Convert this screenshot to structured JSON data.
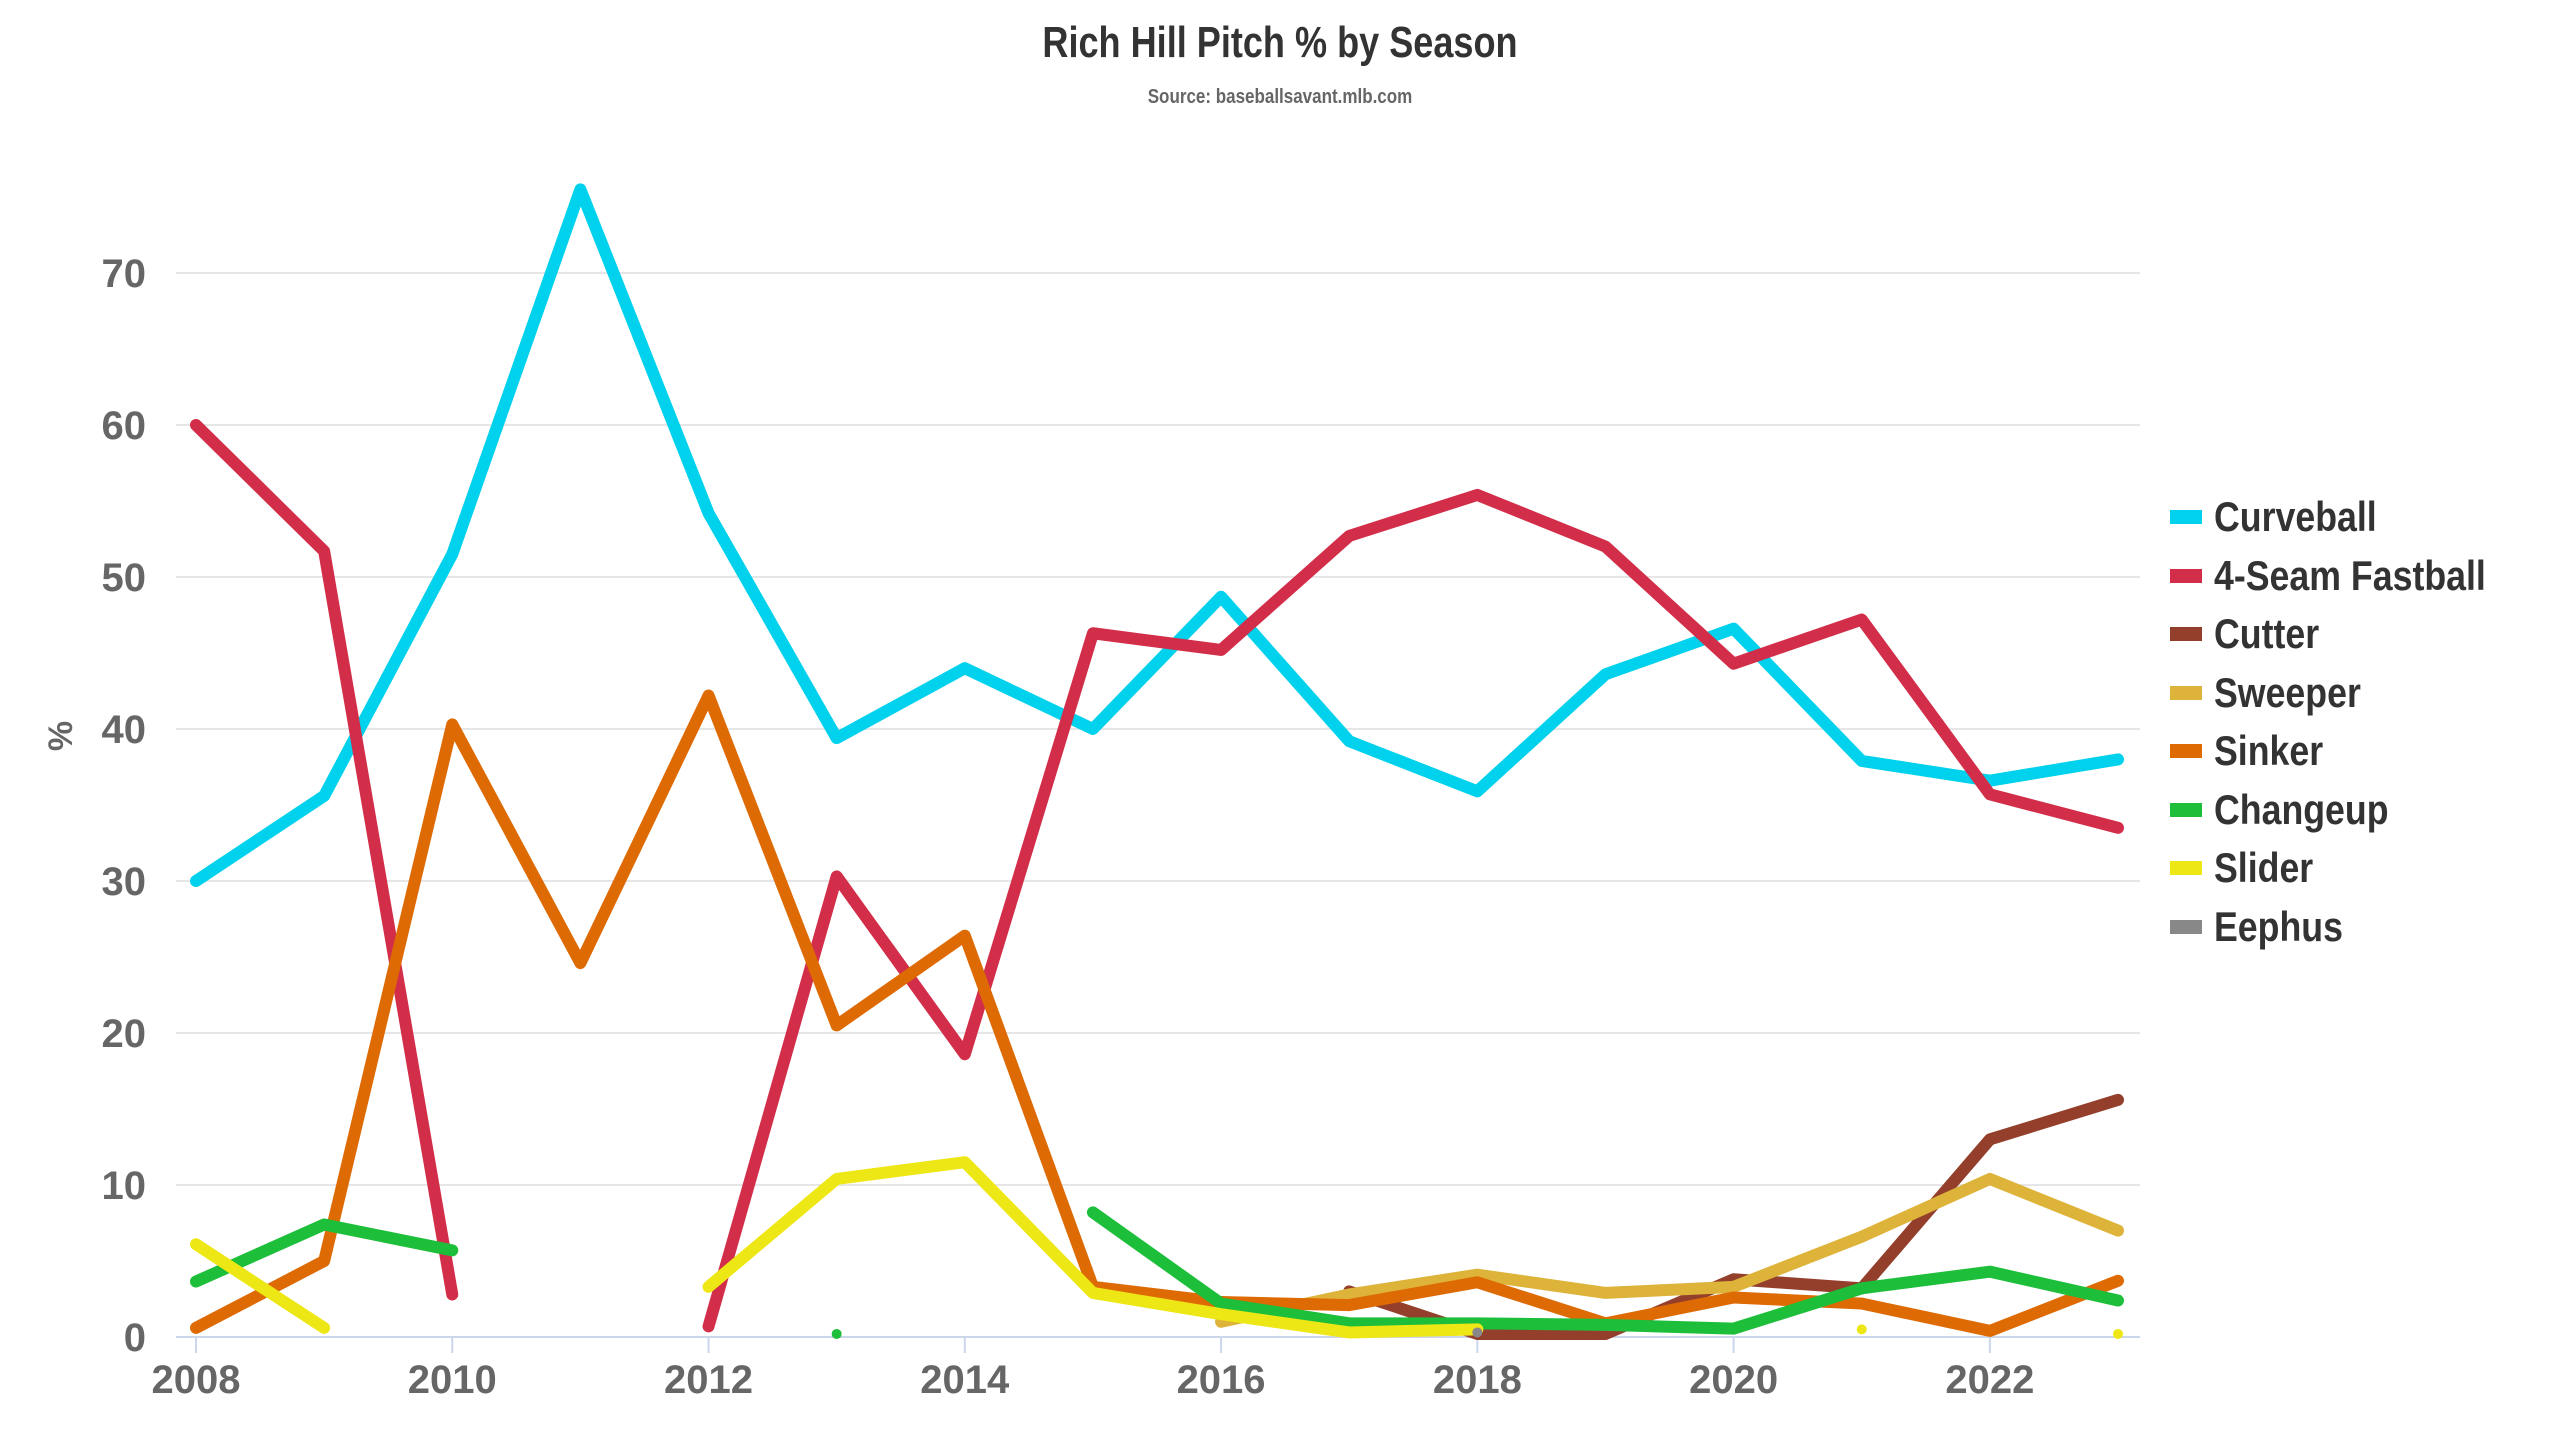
{
  "chart_data": {
    "type": "line",
    "title": "Rich Hill Pitch % by Season",
    "subtitle": "Source: baseballsavant.mlb.com",
    "xlabel": "",
    "ylabel": "%",
    "x": [
      2008,
      2009,
      2010,
      2011,
      2012,
      2013,
      2014,
      2015,
      2016,
      2017,
      2018,
      2019,
      2020,
      2021,
      2022,
      2023
    ],
    "xticks": [
      "2008",
      "2010",
      "2012",
      "2014",
      "2016",
      "2018",
      "2020",
      "2022"
    ],
    "yticks": [
      "0",
      "10",
      "20",
      "30",
      "40",
      "50",
      "60",
      "70"
    ],
    "ylim": [
      0,
      78
    ],
    "xlim": [
      2008,
      2023
    ],
    "grid": true,
    "legend_position": "right",
    "series": [
      {
        "name": "Curveball",
        "color": "#00d1ec",
        "values": [
          30.0,
          35.6,
          51.5,
          75.5,
          54.2,
          39.4,
          44.0,
          40.0,
          48.7,
          39.2,
          35.9,
          43.6,
          46.6,
          37.9,
          36.6,
          38.0
        ]
      },
      {
        "name": "4-Seam Fastball",
        "color": "#d22d49",
        "values": [
          60.0,
          51.7,
          2.8,
          null,
          0.7,
          30.3,
          18.6,
          46.3,
          45.2,
          52.7,
          55.4,
          52.0,
          44.3,
          47.2,
          35.7,
          33.5
        ]
      },
      {
        "name": "Cutter",
        "color": "#933f2c",
        "values": [
          null,
          null,
          null,
          null,
          null,
          null,
          null,
          null,
          null,
          3.0,
          0.2,
          0.2,
          3.8,
          3.2,
          13.0,
          15.6
        ]
      },
      {
        "name": "Sweeper",
        "color": "#ddb33a",
        "values": [
          null,
          null,
          null,
          null,
          null,
          null,
          null,
          null,
          1.0,
          2.8,
          4.1,
          2.9,
          3.3,
          6.6,
          10.4,
          7.0
        ]
      },
      {
        "name": "Sinker",
        "color": "#de6a04",
        "values": [
          0.6,
          5.0,
          40.3,
          24.6,
          42.2,
          20.5,
          26.4,
          3.3,
          2.3,
          2.1,
          3.6,
          0.9,
          2.6,
          2.2,
          0.4,
          3.7
        ]
      },
      {
        "name": "Changeup",
        "color": "#1dbe3a",
        "values": [
          3.65,
          7.4,
          5.7,
          null,
          null,
          0.2,
          null,
          8.2,
          2.2,
          0.9,
          0.9,
          0.8,
          0.55,
          3.2,
          4.3,
          2.4
        ]
      },
      {
        "name": "Slider",
        "color": "#eee716",
        "values": [
          6.1,
          0.6,
          null,
          null,
          3.3,
          10.4,
          11.5,
          2.9,
          1.5,
          0.3,
          0.5,
          null,
          null,
          0.5,
          null,
          0.2
        ]
      },
      {
        "name": "Eephus",
        "color": "#888888",
        "values": [
          null,
          null,
          null,
          null,
          null,
          null,
          null,
          null,
          null,
          null,
          0.3,
          null,
          null,
          null,
          null,
          null
        ]
      }
    ]
  }
}
